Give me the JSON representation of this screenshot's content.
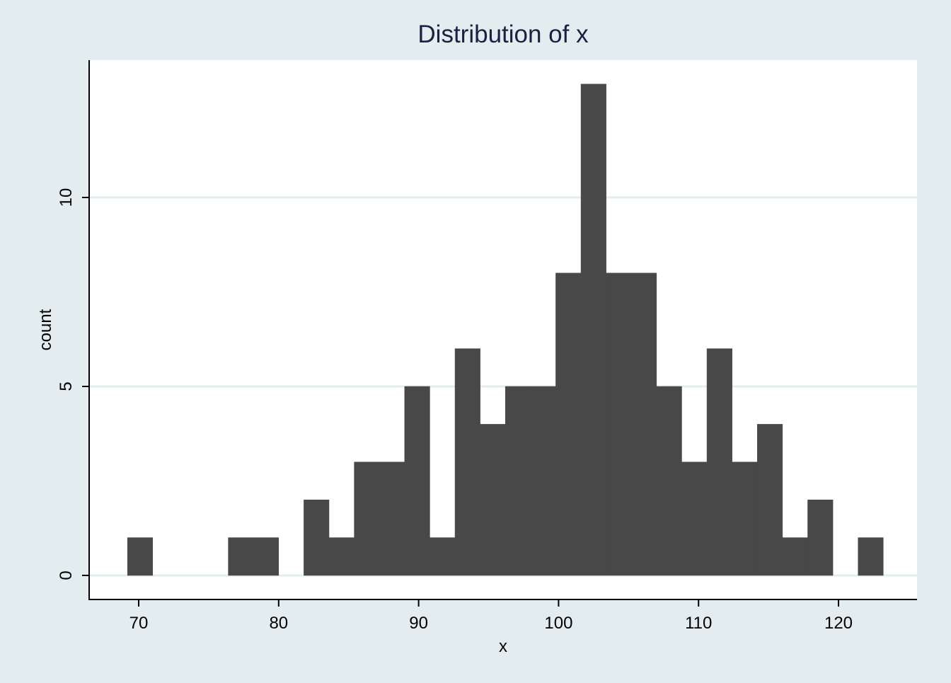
{
  "chart_data": {
    "type": "bar",
    "title": "Distribution of x",
    "xlabel": "x",
    "ylabel": "count",
    "xlim": [
      66.5,
      126.5
    ],
    "ylim": [
      -1.25,
      13.05
    ],
    "xticks": [
      70,
      80,
      90,
      100,
      110,
      120
    ],
    "yticks": [
      0,
      5,
      10
    ],
    "grid": "horizontal",
    "legend": "none",
    "colors": {
      "background": "#e3ecee",
      "plot_area": "#ffffff",
      "bar": "#484848",
      "grid": "#e3ecee",
      "axis": "#000000",
      "title": "#1a2243"
    },
    "bin_width": 1.8,
    "bins": [
      {
        "start": 69.2,
        "count": 1
      },
      {
        "start": 71.0,
        "count": 0
      },
      {
        "start": 72.8,
        "count": 0
      },
      {
        "start": 74.6,
        "count": 0
      },
      {
        "start": 76.4,
        "count": 1
      },
      {
        "start": 78.2,
        "count": 1
      },
      {
        "start": 80.0,
        "count": 0
      },
      {
        "start": 81.8,
        "count": 2
      },
      {
        "start": 83.6,
        "count": 1
      },
      {
        "start": 85.4,
        "count": 3
      },
      {
        "start": 87.2,
        "count": 3
      },
      {
        "start": 89.0,
        "count": 5
      },
      {
        "start": 90.8,
        "count": 1
      },
      {
        "start": 92.6,
        "count": 6
      },
      {
        "start": 94.4,
        "count": 4
      },
      {
        "start": 96.2,
        "count": 5
      },
      {
        "start": 98.0,
        "count": 5
      },
      {
        "start": 99.8,
        "count": 8
      },
      {
        "start": 101.6,
        "count": 13
      },
      {
        "start": 103.4,
        "count": 8
      },
      {
        "start": 105.2,
        "count": 8
      },
      {
        "start": 107.0,
        "count": 5
      },
      {
        "start": 108.8,
        "count": 3
      },
      {
        "start": 110.6,
        "count": 6
      },
      {
        "start": 112.4,
        "count": 3
      },
      {
        "start": 114.2,
        "count": 4
      },
      {
        "start": 116.0,
        "count": 1
      },
      {
        "start": 117.8,
        "count": 2
      },
      {
        "start": 119.6,
        "count": 0
      },
      {
        "start": 121.4,
        "count": 1
      }
    ]
  }
}
